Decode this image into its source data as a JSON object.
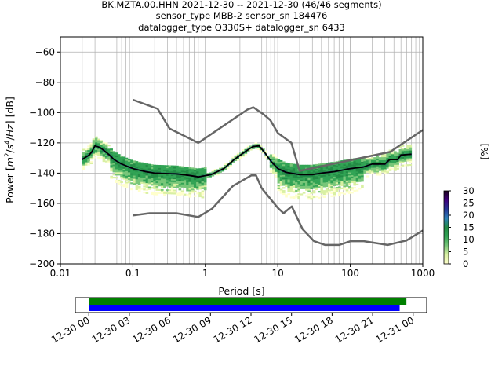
{
  "chart_data": [
    {
      "type": "heatmap",
      "title_lines": [
        "BK.MZTA.00.HHN   2021-12-30 -- 2021-12-30  (46/46 segments)",
        "sensor_type MBB-2 sensor_sn 184476",
        "datalogger_type Q330S+ datalogger_sn 6433"
      ],
      "xlabel": "Period [s]",
      "ylabel_parts": [
        "Power [",
        "m",
        "2",
        "/",
        "s",
        "4",
        "/",
        "Hz",
        "] [dB]"
      ],
      "x_scale": "log",
      "xlim": [
        0.01,
        1000
      ],
      "ylim": [
        -200,
        -50
      ],
      "x_ticks": [
        {
          "v": 0.01,
          "label": "0.01"
        },
        {
          "v": 0.1,
          "label": "0.1"
        },
        {
          "v": 1,
          "label": "1"
        },
        {
          "v": 10,
          "label": "10"
        },
        {
          "v": 100,
          "label": "100"
        },
        {
          "v": 1000,
          "label": "1000"
        }
      ],
      "y_ticks": [
        {
          "v": -60,
          "label": "−60"
        },
        {
          "v": -80,
          "label": "−80"
        },
        {
          "v": -100,
          "label": "−100"
        },
        {
          "v": -120,
          "label": "−120"
        },
        {
          "v": -140,
          "label": "−140"
        },
        {
          "v": -160,
          "label": "−160"
        },
        {
          "v": -180,
          "label": "−180"
        },
        {
          "v": -200,
          "label": "−200"
        }
      ],
      "grid": true,
      "series": [
        {
          "role": "model-high",
          "color": "#666666",
          "points": [
            [
              0.1,
              -91.5
            ],
            [
              0.22,
              -97.5
            ],
            [
              0.32,
              -110.5
            ],
            [
              0.8,
              -120
            ],
            [
              3.8,
              -98
            ],
            [
              4.6,
              -96.5
            ],
            [
              6.3,
              -101
            ],
            [
              7.9,
              -105
            ],
            [
              10,
              -113.5
            ],
            [
              15.4,
              -120
            ],
            [
              20,
              -138.5
            ],
            [
              354,
              -126
            ],
            [
              1000,
              -111.5
            ]
          ]
        },
        {
          "role": "model-low",
          "color": "#666666",
          "points": [
            [
              0.1,
              -168
            ],
            [
              0.17,
              -166.5
            ],
            [
              0.4,
              -166.5
            ],
            [
              0.8,
              -169
            ],
            [
              1.24,
              -163.5
            ],
            [
              2.4,
              -148.5
            ],
            [
              4.3,
              -141.5
            ],
            [
              5,
              -141.5
            ],
            [
              6,
              -150
            ],
            [
              10,
              -163
            ],
            [
              12,
              -166.5
            ],
            [
              15.6,
              -162
            ],
            [
              21.9,
              -177
            ],
            [
              31.6,
              -185
            ],
            [
              45,
              -187.5
            ],
            [
              70,
              -187.5
            ],
            [
              101,
              -185
            ],
            [
              154,
              -185
            ],
            [
              328,
              -187.5
            ],
            [
              600,
              -184.5
            ],
            [
              1000,
              -178
            ]
          ]
        },
        {
          "role": "mode",
          "color": "#000000",
          "points": [
            [
              0.02,
              -131
            ],
            [
              0.025,
              -128
            ],
            [
              0.027,
              -126
            ],
            [
              0.03,
              -122
            ],
            [
              0.035,
              -123
            ],
            [
              0.045,
              -127
            ],
            [
              0.055,
              -131
            ],
            [
              0.07,
              -134
            ],
            [
              0.1,
              -137
            ],
            [
              0.15,
              -139
            ],
            [
              0.2,
              -140
            ],
            [
              0.4,
              -140.5
            ],
            [
              0.6,
              -141.5
            ],
            [
              0.8,
              -142.5
            ],
            [
              1.2,
              -141
            ],
            [
              1.8,
              -137
            ],
            [
              2.5,
              -131
            ],
            [
              3.5,
              -126
            ],
            [
              4.5,
              -122.5
            ],
            [
              5.5,
              -122
            ],
            [
              6.5,
              -126
            ],
            [
              8,
              -132
            ],
            [
              10,
              -137
            ],
            [
              13,
              -139.5
            ],
            [
              20,
              -141
            ],
            [
              30,
              -141
            ],
            [
              40,
              -140
            ],
            [
              60,
              -139
            ],
            [
              100,
              -137
            ],
            [
              150,
              -136
            ],
            [
              200,
              -134
            ],
            [
              300,
              -134
            ],
            [
              350,
              -131
            ],
            [
              450,
              -131
            ],
            [
              500,
              -128
            ],
            [
              700,
              -127.5
            ]
          ]
        }
      ],
      "colorbar": {
        "label": "[%]",
        "range": [
          0,
          30
        ],
        "ticks": [
          0,
          5,
          10,
          15,
          20,
          25,
          30
        ],
        "colormap": [
          "#ffffcc",
          "#d9f0a3",
          "#78c679",
          "#31a354",
          "#238b45",
          "#2c7fb8",
          "#253494",
          "#3f007d",
          "#1a001a"
        ]
      }
    },
    {
      "type": "timeline",
      "x_ticks": [
        "12-30 00",
        "12-30 03",
        "12-30 06",
        "12-30 09",
        "12-30 12",
        "12-30 15",
        "12-30 18",
        "12-30 21",
        "12-31 00"
      ],
      "xlim_hours": [
        -1,
        25
      ],
      "bars": [
        {
          "role": "data-coverage",
          "color": "#008000",
          "start_hours": 0,
          "end_hours": 23.5
        },
        {
          "role": "psd-segments",
          "color": "#0000ff",
          "start_hours": 0,
          "end_hours": 23
        }
      ]
    }
  ]
}
